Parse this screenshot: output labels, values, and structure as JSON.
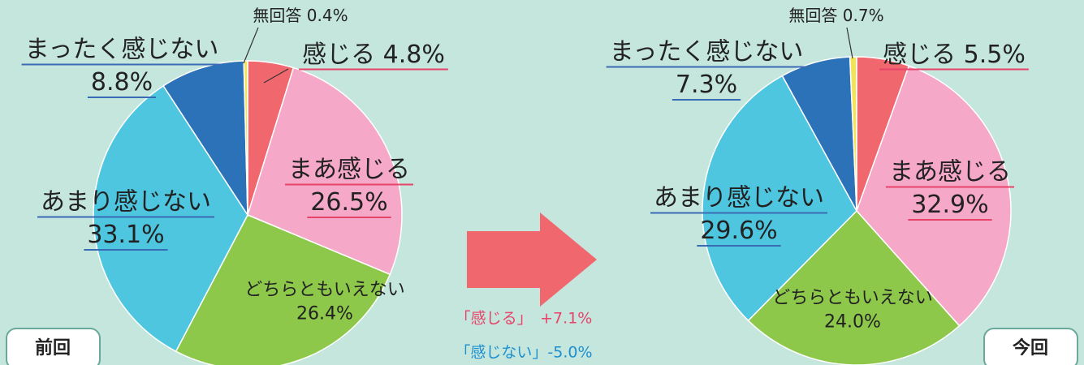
{
  "chart_data": [
    {
      "type": "pie",
      "title": "前回",
      "categories": [
        "感じる",
        "まあ感じる",
        "どちらともいえない",
        "あまり感じない",
        "まったく感じない",
        "無回答"
      ],
      "values": [
        4.8,
        26.5,
        26.4,
        33.1,
        8.8,
        0.4
      ],
      "value_labels": [
        "4.8%",
        "26.5%",
        "26.4%",
        "33.1%",
        "8.8%",
        "0.4%"
      ],
      "colors": [
        "#f0686e",
        "#f5a8c7",
        "#8dc84b",
        "#4fc6e0",
        "#2b72b9",
        "#f1e35a"
      ]
    },
    {
      "type": "pie",
      "title": "今回",
      "categories": [
        "感じる",
        "まあ感じる",
        "どちらともいえない",
        "あまり感じない",
        "まったく感じない",
        "無回答"
      ],
      "values": [
        5.5,
        32.9,
        24.0,
        29.6,
        7.3,
        0.7
      ],
      "value_labels": [
        "5.5%",
        "32.9%",
        "24.0%",
        "29.6%",
        "7.3%",
        "0.7%"
      ],
      "colors": [
        "#f0686e",
        "#f5a8c7",
        "#8dc84b",
        "#4fc6e0",
        "#2b72b9",
        "#f1e35a"
      ]
    }
  ],
  "notes": [
    "「感じる」　+7.1%",
    "「感じない」-5.0%"
  ]
}
